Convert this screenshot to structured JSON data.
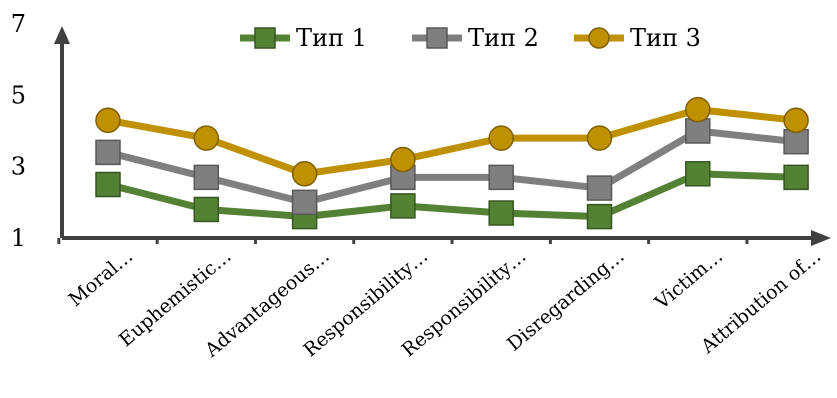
{
  "chart_data": {
    "type": "line",
    "categories": [
      "Moral…",
      "Euphemistic…",
      "Advantageous…",
      "Responsibility…",
      "Responsibility…",
      "Disregarding…",
      "Victim…",
      "Attribution of…"
    ],
    "series": [
      {
        "name": "Тип 1",
        "color": "#548235",
        "marker": "square",
        "values": [
          2.5,
          1.8,
          1.6,
          1.9,
          1.7,
          1.6,
          2.8,
          2.7
        ]
      },
      {
        "name": "Тип 2",
        "color": "#7f7f7f",
        "marker": "square",
        "values": [
          3.4,
          2.7,
          2.0,
          2.7,
          2.7,
          2.4,
          4.0,
          3.7
        ]
      },
      {
        "name": "Тип 3",
        "color": "#bf9000",
        "marker": "circle",
        "values": [
          4.3,
          3.8,
          2.8,
          3.2,
          3.8,
          3.8,
          4.6,
          4.3
        ]
      }
    ],
    "yticks": [
      1,
      3,
      5,
      7
    ],
    "ylim": [
      1,
      7
    ],
    "legend_position": "top",
    "grid": false,
    "axis_color": "#404040",
    "title": "",
    "xlabel": "",
    "ylabel": ""
  }
}
